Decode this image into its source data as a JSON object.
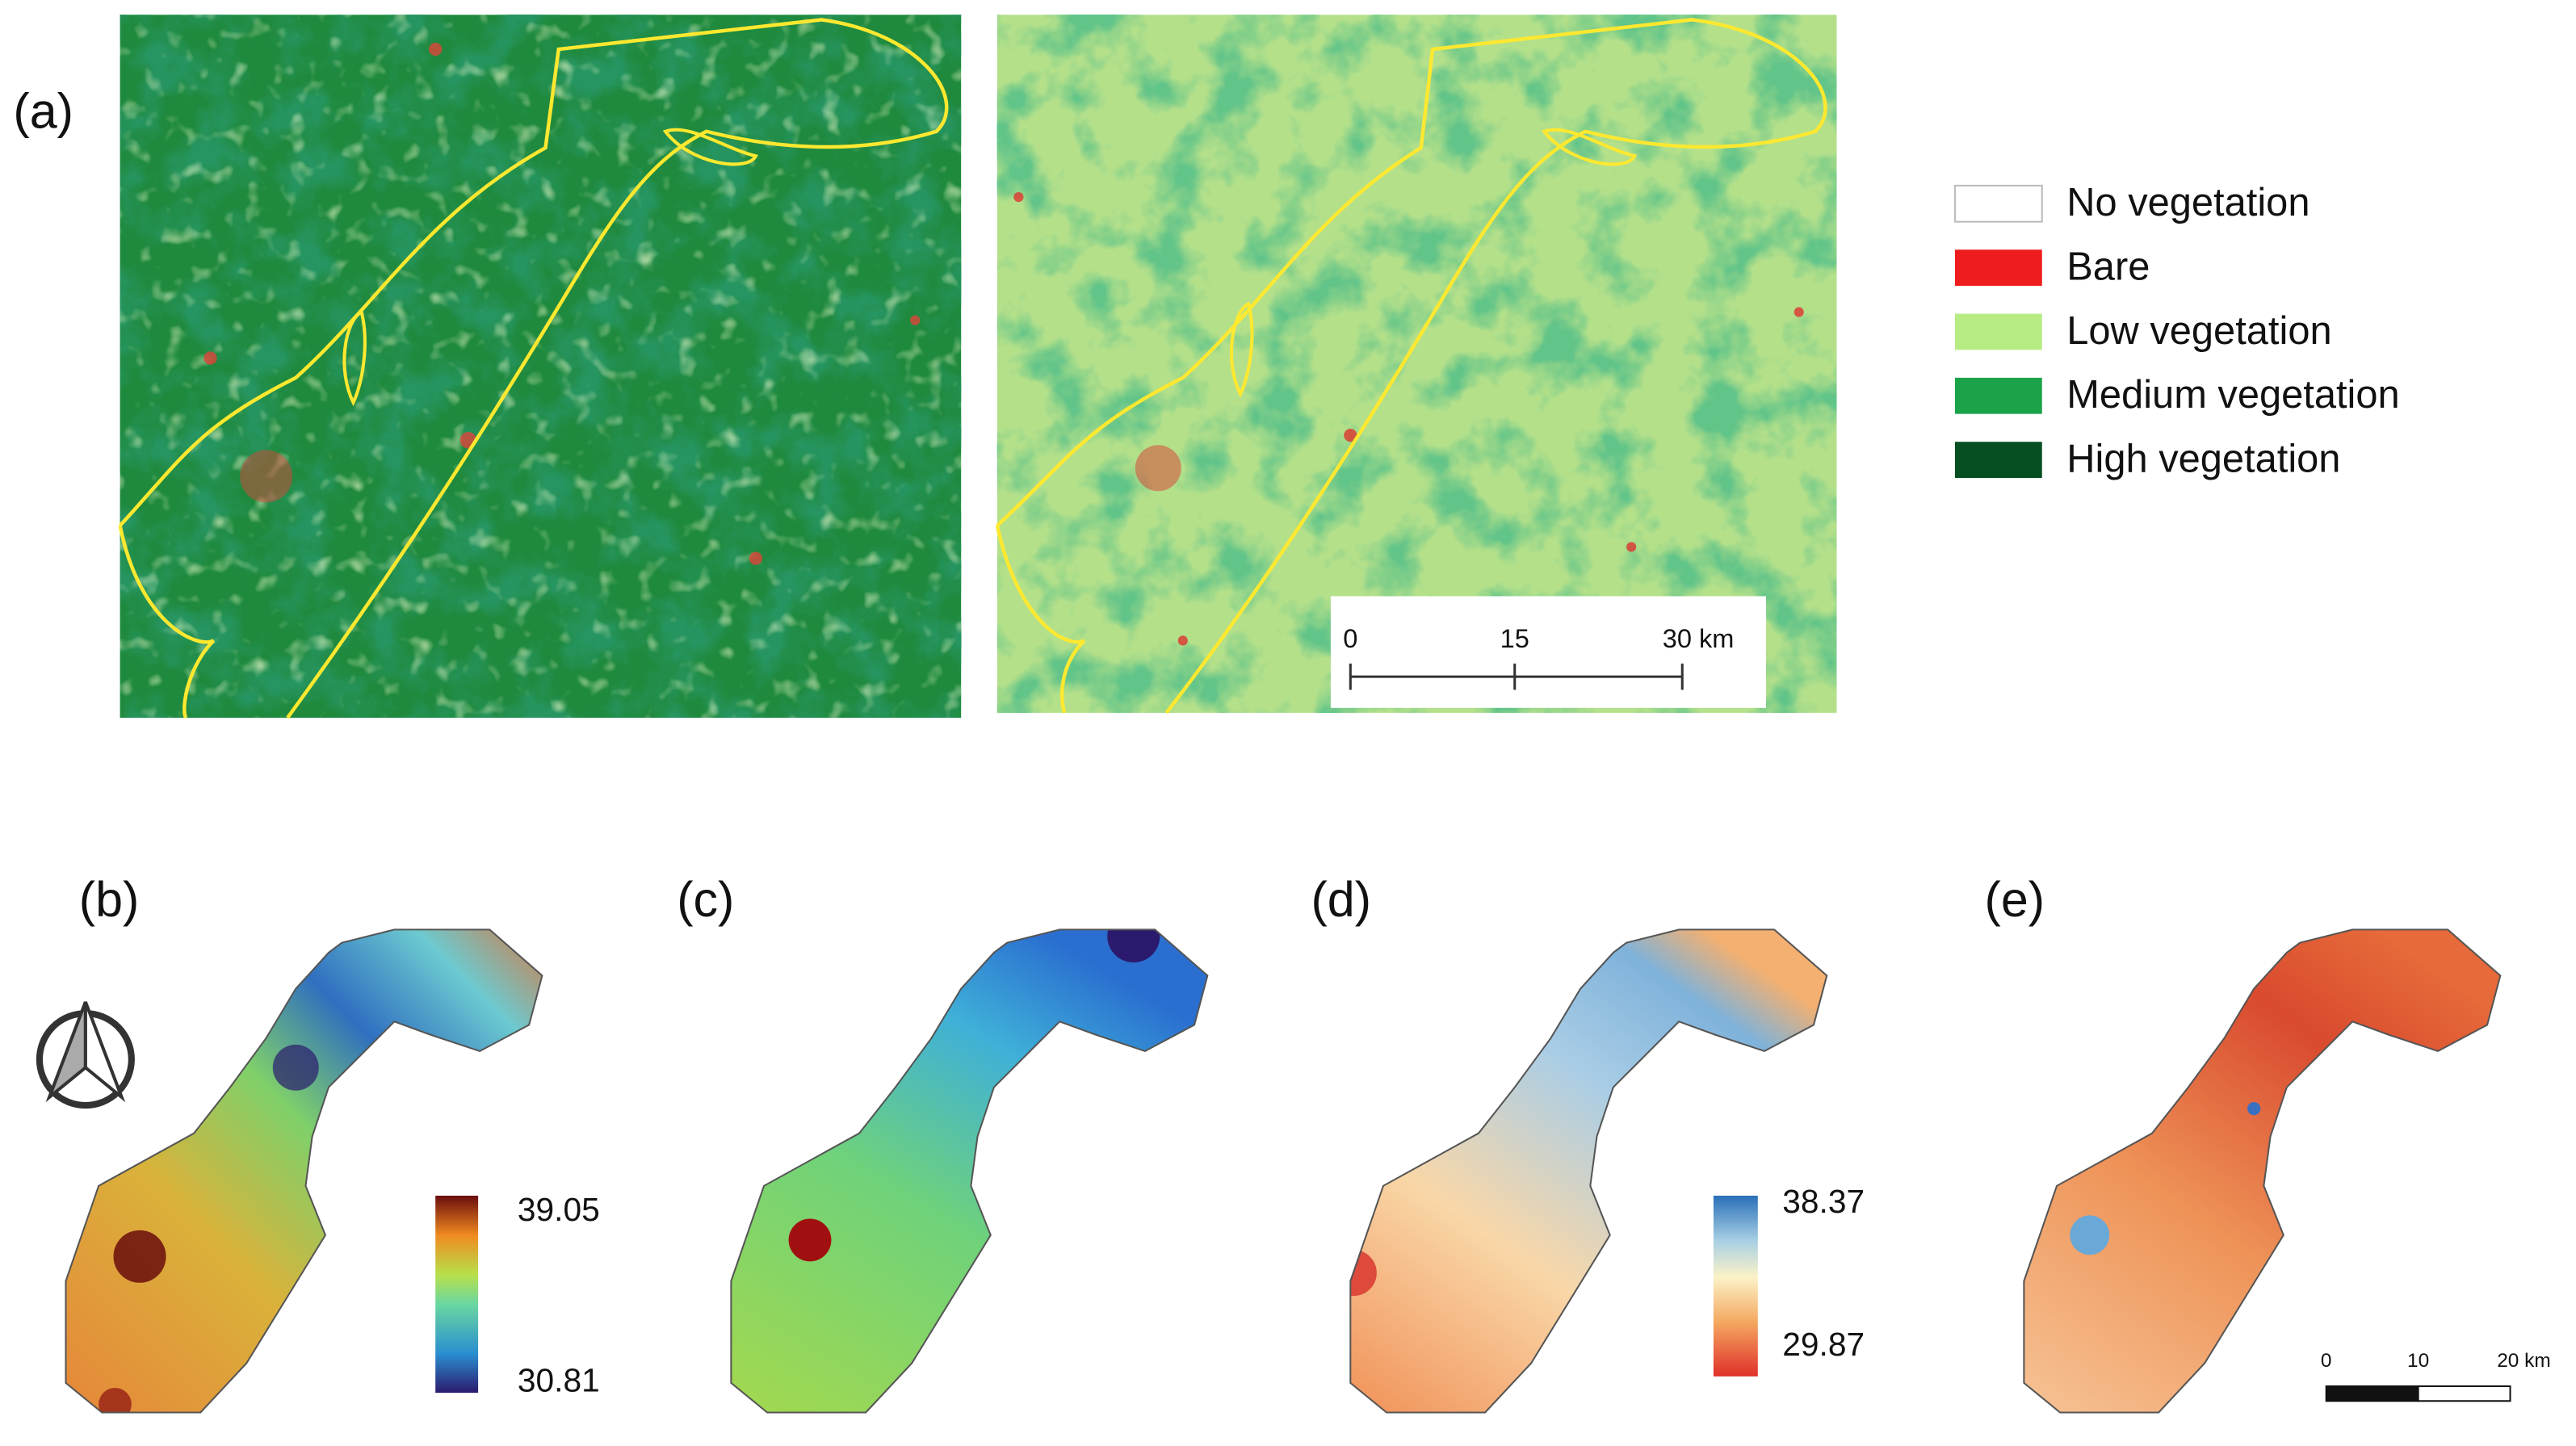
{
  "panel_a": {
    "label": "(a)",
    "legend": [
      "No vegetation",
      "Bare",
      "Low vegetation",
      "Medium vegetation",
      "High vegetation"
    ],
    "scale_bar": [
      "0",
      "15",
      "30 km"
    ]
  },
  "panels": [
    {
      "label": "(b)"
    },
    {
      "label": "(c)"
    },
    {
      "label": "(d)"
    },
    {
      "label": "(e)"
    }
  ],
  "colorbars": [
    {
      "max": "39.05",
      "min": "30.81"
    },
    {
      "max": "38.37",
      "min": "29.87"
    }
  ],
  "scale_bar_e": [
    "0",
    "10",
    "20 km"
  ]
}
